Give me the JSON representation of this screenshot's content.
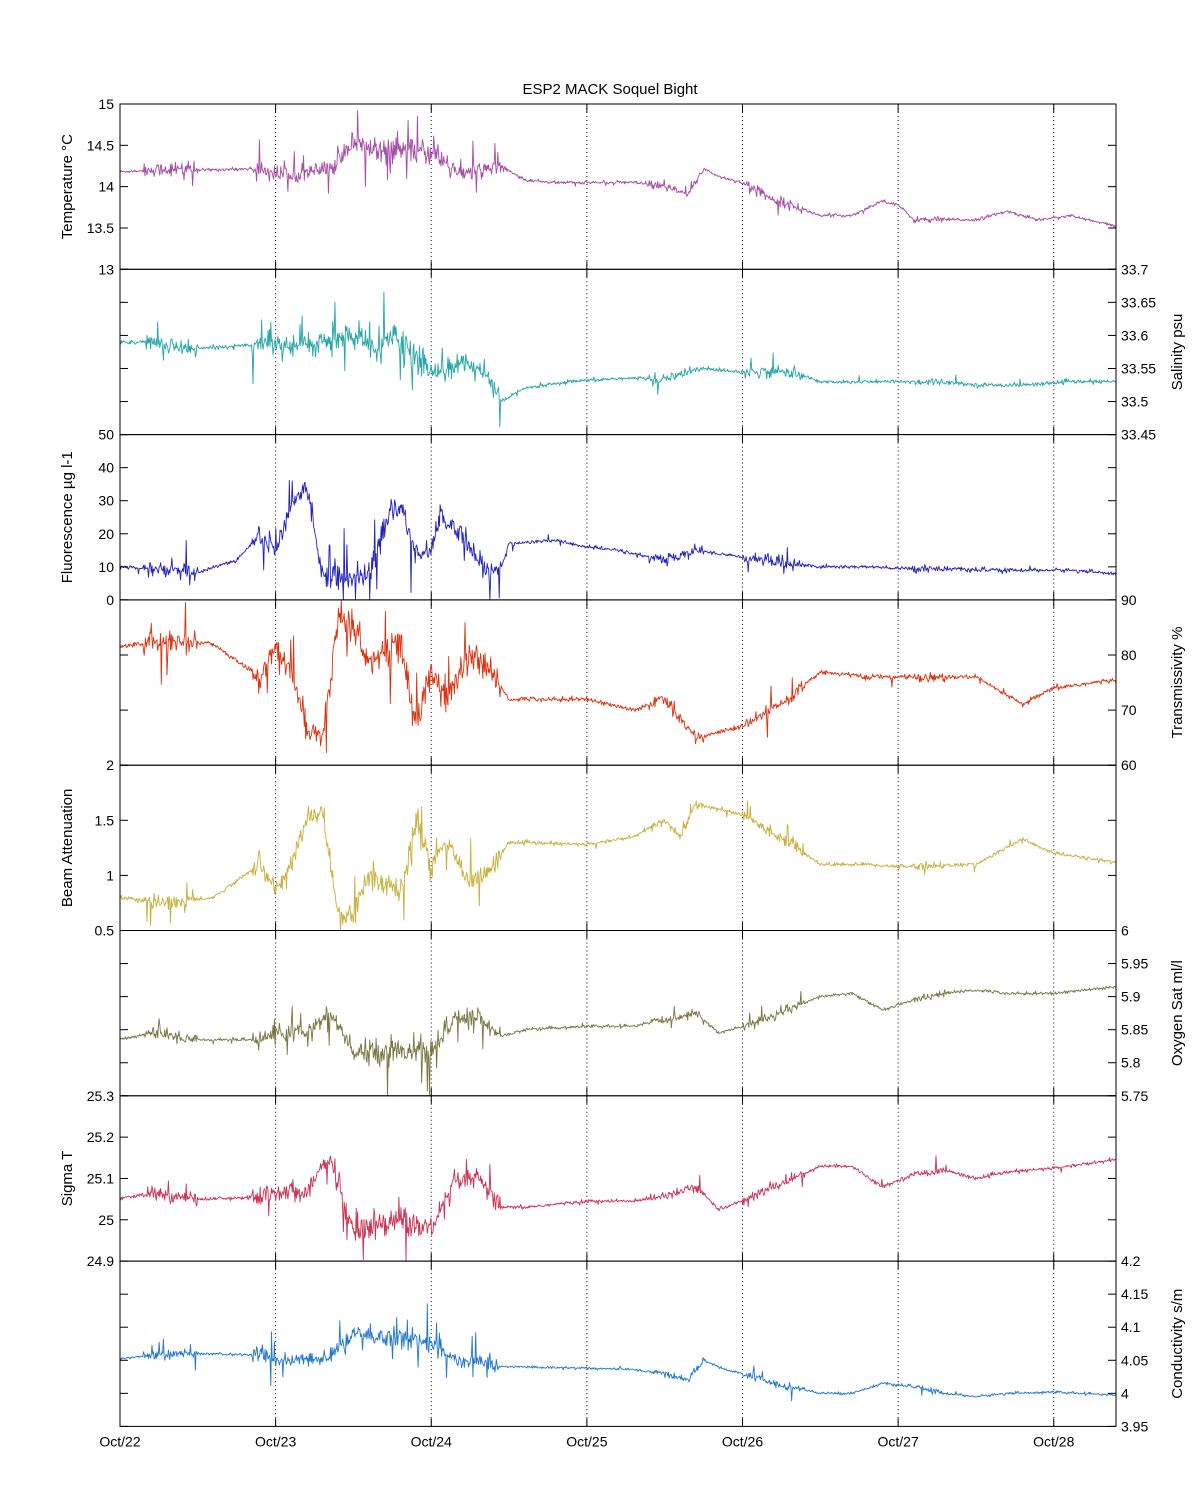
{
  "chart_data": {
    "type": "line",
    "title": "ESP2 MACK  Soquel Bight",
    "x_range": [
      "Oct/22",
      "Oct/28 10:00"
    ],
    "x_tick_labels": [
      "Oct/22",
      "Oct/23",
      "Oct/24",
      "Oct/25",
      "Oct/26",
      "Oct/27",
      "Oct/28"
    ],
    "grid": "vertical dotted lines at day ticks",
    "panels": [
      {
        "id": "temperature",
        "ylabel": "Temperature °C",
        "axis_side": "left",
        "ylim": [
          13,
          15
        ],
        "ticks": [
          13,
          13.5,
          14,
          14.5,
          15
        ],
        "tick_labels": [
          "13",
          "13.5",
          "14",
          "14.5",
          "15"
        ],
        "color": "#a64ca6",
        "noise": 0.04,
        "x": [
          0,
          0.2,
          0.35,
          0.5,
          0.9,
          1.0,
          1.2,
          1.35,
          1.5,
          1.6,
          1.8,
          2.0,
          2.2,
          2.3,
          2.45,
          2.6,
          2.8,
          3.0,
          3.3,
          3.5,
          3.65,
          3.75,
          3.85,
          4.0,
          4.2,
          4.5,
          4.7,
          4.9,
          5.0,
          5.1,
          5.3,
          5.5,
          5.7,
          5.9,
          6.1,
          6.4
        ],
        "y": [
          14.18,
          14.2,
          14.22,
          14.2,
          14.22,
          14.15,
          14.18,
          14.2,
          14.55,
          14.45,
          14.45,
          14.4,
          14.15,
          14.2,
          14.25,
          14.08,
          14.05,
          14.05,
          14.05,
          14.0,
          13.9,
          14.22,
          14.12,
          14.05,
          13.85,
          13.65,
          13.65,
          13.83,
          13.78,
          13.6,
          13.6,
          13.6,
          13.7,
          13.6,
          13.65,
          13.52
        ]
      },
      {
        "id": "salinity",
        "ylabel": "Salinity psu",
        "axis_side": "right",
        "ylim": [
          33.45,
          33.7
        ],
        "ticks": [
          33.45,
          33.5,
          33.55,
          33.6,
          33.65,
          33.7
        ],
        "tick_labels": [
          "33.45",
          "33.5",
          "33.55",
          "33.6",
          "33.65",
          "33.7"
        ],
        "color": "#26a6a6",
        "noise": 0.006,
        "x": [
          0,
          0.2,
          0.5,
          0.8,
          1.0,
          1.2,
          1.5,
          1.65,
          1.75,
          1.85,
          2.0,
          2.2,
          2.35,
          2.45,
          2.6,
          2.9,
          3.2,
          3.5,
          3.75,
          4.0,
          4.3,
          4.5,
          4.7,
          5.0,
          5.3,
          5.5,
          5.8,
          6.1,
          6.4
        ],
        "y": [
          33.59,
          33.59,
          33.58,
          33.585,
          33.59,
          33.585,
          33.6,
          33.575,
          33.6,
          33.58,
          33.545,
          33.56,
          33.54,
          33.5,
          33.52,
          33.53,
          33.535,
          33.535,
          33.55,
          33.545,
          33.545,
          33.53,
          33.53,
          33.53,
          33.53,
          33.525,
          33.525,
          33.53,
          33.53
        ]
      },
      {
        "id": "fluorescence",
        "ylabel": "Fluorescence µg l-1",
        "axis_side": "left",
        "ylim": [
          0,
          50
        ],
        "ticks": [
          0,
          10,
          20,
          30,
          40,
          50
        ],
        "tick_labels": [
          "0",
          "10",
          "20",
          "30",
          "40",
          "50"
        ],
        "color": "#2222bb",
        "noise": 1.2,
        "x": [
          0,
          0.3,
          0.5,
          0.6,
          0.75,
          0.9,
          1.0,
          1.1,
          1.2,
          1.3,
          1.4,
          1.6,
          1.75,
          1.8,
          1.9,
          2.0,
          2.05,
          2.2,
          2.35,
          2.45,
          2.5,
          2.8,
          3.0,
          3.2,
          3.5,
          3.7,
          4.0,
          4.3,
          4.5,
          4.8,
          5.0,
          5.3,
          5.5,
          5.8,
          6.1,
          6.4
        ],
        "y": [
          10,
          9,
          8,
          10,
          12,
          20,
          15,
          28,
          35,
          8,
          6,
          8,
          28,
          28,
          15,
          15,
          25,
          20,
          8,
          10,
          17,
          18,
          16,
          15,
          12,
          15,
          13,
          11,
          10,
          10,
          9.5,
          9.5,
          9,
          9,
          9,
          8
        ]
      },
      {
        "id": "transmissivity",
        "ylabel": "Transmissivity %",
        "axis_side": "right",
        "ylim": [
          60,
          90
        ],
        "ticks": [
          60,
          70,
          80,
          90
        ],
        "tick_labels": [
          "60",
          "70",
          "80",
          "90"
        ],
        "color": "#dd3311",
        "noise": 0.9,
        "x": [
          0,
          0.3,
          0.6,
          0.9,
          1.0,
          1.1,
          1.2,
          1.3,
          1.4,
          1.5,
          1.6,
          1.8,
          1.9,
          2.0,
          2.1,
          2.25,
          2.35,
          2.5,
          3.0,
          3.3,
          3.5,
          3.7,
          3.85,
          4.0,
          4.3,
          4.5,
          4.8,
          5.0,
          5.5,
          5.8,
          6.0,
          6.4
        ],
        "y": [
          81.5,
          82.5,
          82,
          76,
          82,
          77,
          67,
          65,
          86,
          85,
          79,
          82,
          67,
          77,
          72,
          80,
          78,
          72,
          72,
          70,
          72,
          65,
          66,
          67,
          72,
          77,
          76,
          76,
          76,
          71,
          74,
          75.5
        ]
      },
      {
        "id": "beam_attenuation",
        "ylabel": "Beam Attenuation",
        "axis_side": "left",
        "ylim": [
          0.5,
          2
        ],
        "ticks": [
          0.5,
          1,
          1.5,
          2
        ],
        "tick_labels": [
          "0.5",
          "1",
          "1.5",
          "2"
        ],
        "color": "#c8b03c",
        "noise": 0.035,
        "x": [
          0,
          0.3,
          0.6,
          0.9,
          1.0,
          1.1,
          1.2,
          1.3,
          1.4,
          1.5,
          1.6,
          1.8,
          1.9,
          2.0,
          2.1,
          2.25,
          2.35,
          2.5,
          3.0,
          3.3,
          3.5,
          3.6,
          3.7,
          3.85,
          4.0,
          4.3,
          4.5,
          4.8,
          5.0,
          5.5,
          5.8,
          6.0,
          6.4
        ],
        "y": [
          0.8,
          0.75,
          0.8,
          1.1,
          0.85,
          1.1,
          1.5,
          1.6,
          0.65,
          0.65,
          1.0,
          0.85,
          1.5,
          1.1,
          1.3,
          0.95,
          1.0,
          1.3,
          1.28,
          1.35,
          1.5,
          1.35,
          1.65,
          1.6,
          1.55,
          1.3,
          1.1,
          1.1,
          1.08,
          1.1,
          1.33,
          1.2,
          1.12
        ]
      },
      {
        "id": "oxygen_sat",
        "ylabel": "Oxygen Sat ml/l",
        "axis_side": "right",
        "ylim": [
          5.75,
          6
        ],
        "ticks": [
          5.75,
          5.8,
          5.85,
          5.9,
          5.95,
          6
        ],
        "tick_labels": [
          "5.75",
          "5.8",
          "5.85",
          "5.9",
          "5.95",
          "6"
        ],
        "color": "#777744",
        "noise": 0.005,
        "x": [
          0,
          0.2,
          0.5,
          0.9,
          1.0,
          1.2,
          1.35,
          1.5,
          1.6,
          1.8,
          2.0,
          2.15,
          2.3,
          2.45,
          2.6,
          3.0,
          3.3,
          3.5,
          3.7,
          3.85,
          4.0,
          4.2,
          4.5,
          4.7,
          4.9,
          5.1,
          5.3,
          5.5,
          5.7,
          6.0,
          6.4
        ],
        "y": [
          5.835,
          5.845,
          5.835,
          5.835,
          5.845,
          5.845,
          5.875,
          5.815,
          5.815,
          5.82,
          5.815,
          5.865,
          5.87,
          5.84,
          5.85,
          5.855,
          5.855,
          5.865,
          5.875,
          5.845,
          5.855,
          5.87,
          5.9,
          5.905,
          5.88,
          5.895,
          5.905,
          5.91,
          5.905,
          5.905,
          5.915
        ]
      },
      {
        "id": "sigma_t",
        "ylabel": "Sigma T",
        "axis_side": "left",
        "ylim": [
          24.9,
          25.3
        ],
        "ticks": [
          24.9,
          25,
          25.1,
          25.2,
          25.3
        ],
        "tick_labels": [
          "24.9",
          "25",
          "25.1",
          "25.2",
          "25.3"
        ],
        "color": "#cc3355",
        "noise": 0.009,
        "x": [
          0,
          0.2,
          0.5,
          0.9,
          1.0,
          1.2,
          1.35,
          1.5,
          1.6,
          1.8,
          2.0,
          2.15,
          2.3,
          2.45,
          2.6,
          3.0,
          3.3,
          3.5,
          3.7,
          3.85,
          4.0,
          4.2,
          4.5,
          4.7,
          4.9,
          5.1,
          5.3,
          5.5,
          5.7,
          6.0,
          6.4
        ],
        "y": [
          25.05,
          25.065,
          25.05,
          25.055,
          25.07,
          25.07,
          25.15,
          24.97,
          24.99,
          25.0,
          24.975,
          25.09,
          25.1,
          25.03,
          25.03,
          25.045,
          25.045,
          25.06,
          25.08,
          25.025,
          25.045,
          25.08,
          25.13,
          25.13,
          25.08,
          25.11,
          25.12,
          25.1,
          25.115,
          25.125,
          25.145
        ]
      },
      {
        "id": "conductivity",
        "ylabel": "Conductivity s/m",
        "axis_side": "right",
        "ylim": [
          3.95,
          4.2
        ],
        "ticks": [
          3.95,
          4,
          4.05,
          4.1,
          4.15,
          4.2
        ],
        "tick_labels": [
          "3.95",
          "4",
          "4.05",
          "4.1",
          "4.15",
          "4.2"
        ],
        "color": "#2277cc",
        "noise": 0.004,
        "x": [
          0,
          0.2,
          0.5,
          0.9,
          1.0,
          1.2,
          1.35,
          1.5,
          1.6,
          1.8,
          2.0,
          2.2,
          2.3,
          2.45,
          2.6,
          3.0,
          3.3,
          3.5,
          3.65,
          3.75,
          3.9,
          4.0,
          4.2,
          4.5,
          4.7,
          4.9,
          5.1,
          5.3,
          5.5,
          5.7,
          6.0,
          6.4
        ],
        "y": [
          4.052,
          4.058,
          4.06,
          4.058,
          4.05,
          4.05,
          4.055,
          4.09,
          4.085,
          4.085,
          4.075,
          4.045,
          4.05,
          4.04,
          4.04,
          4.038,
          4.036,
          4.03,
          4.02,
          4.05,
          4.035,
          4.03,
          4.015,
          4.0,
          4.0,
          4.015,
          4.01,
          4.0,
          3.995,
          4.0,
          4.002,
          3.997
        ]
      }
    ]
  }
}
